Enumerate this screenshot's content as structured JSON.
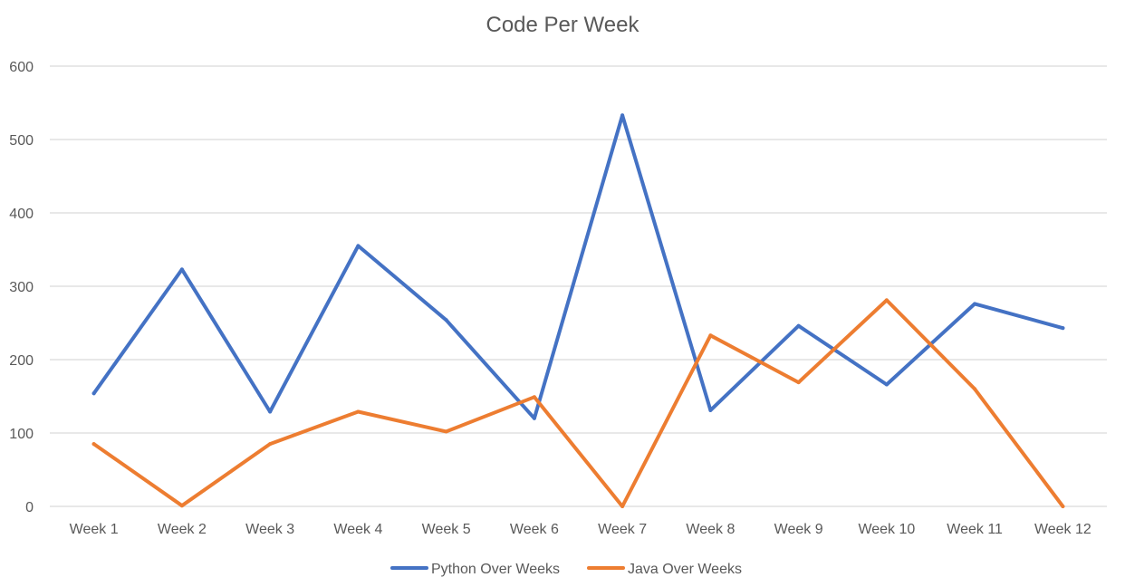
{
  "chart_data": {
    "type": "line",
    "title": "Code Per Week",
    "xlabel": "",
    "ylabel": "",
    "categories": [
      "Week 1",
      "Week 2",
      "Week 3",
      "Week 4",
      "Week 5",
      "Week 6",
      "Week 7",
      "Week 8",
      "Week 9",
      "Week 10",
      "Week 11",
      "Week 12"
    ],
    "ylim": [
      0,
      600
    ],
    "yticks": [
      0,
      100,
      200,
      300,
      400,
      500,
      600
    ],
    "grid": true,
    "legend_position": "bottom",
    "series": [
      {
        "name": "Python Over Weeks",
        "color": "#4472C4",
        "values": [
          154,
          323,
          129,
          355,
          254,
          120,
          533,
          131,
          246,
          166,
          276,
          243
        ]
      },
      {
        "name": "Java Over Weeks",
        "color": "#ED7D31",
        "values": [
          85,
          1,
          85,
          129,
          102,
          149,
          0,
          233,
          169,
          281,
          160,
          0
        ]
      }
    ]
  }
}
